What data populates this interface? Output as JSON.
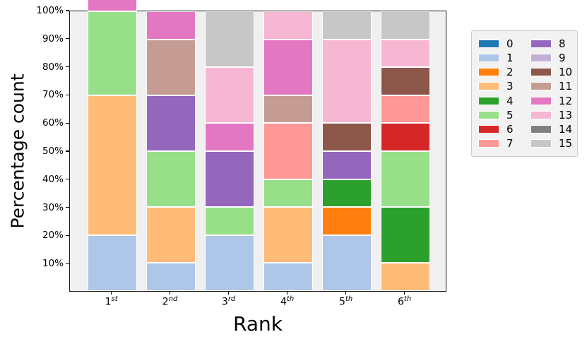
{
  "chart_data": {
    "type": "bar",
    "stacked": true,
    "orientation": "vertical",
    "title": "",
    "xlabel": "Rank",
    "ylabel": "Percentage count",
    "ylim": [
      0,
      100
    ],
    "grid": false,
    "legend_position": "right-outside",
    "categories": [
      {
        "base": "1",
        "sup": "st"
      },
      {
        "base": "2",
        "sup": "nd"
      },
      {
        "base": "3",
        "sup": "rd"
      },
      {
        "base": "4",
        "sup": "th"
      },
      {
        "base": "5",
        "sup": "th"
      },
      {
        "base": "6",
        "sup": "th"
      }
    ],
    "y_ticks": [
      {
        "label": "10%",
        "value": 10
      },
      {
        "label": "20%",
        "value": 20
      },
      {
        "label": "30%",
        "value": 30
      },
      {
        "label": "40%",
        "value": 40
      },
      {
        "label": "50%",
        "value": 50
      },
      {
        "label": "60%",
        "value": 60
      },
      {
        "label": "70%",
        "value": 70
      },
      {
        "label": "80%",
        "value": 80
      },
      {
        "label": "90%",
        "value": 90
      },
      {
        "label": "100%",
        "value": 100
      }
    ],
    "series": [
      {
        "name": "0",
        "color": "#1f77b4",
        "values": [
          0,
          0,
          0,
          0,
          0,
          0
        ]
      },
      {
        "name": "1",
        "color": "#aec7e8",
        "values": [
          20,
          10,
          20,
          10,
          20,
          0
        ]
      },
      {
        "name": "2",
        "color": "#ff7f0e",
        "values": [
          0,
          0,
          0,
          0,
          10,
          0
        ]
      },
      {
        "name": "3",
        "color": "#ffbb78",
        "values": [
          50,
          20,
          0,
          20,
          0,
          10
        ]
      },
      {
        "name": "4",
        "color": "#2ca02c",
        "values": [
          0,
          0,
          0,
          0,
          10,
          20
        ]
      },
      {
        "name": "5",
        "color": "#98df8a",
        "values": [
          30,
          20,
          10,
          10,
          0,
          20
        ]
      },
      {
        "name": "6",
        "color": "#d62728",
        "values": [
          0,
          0,
          0,
          0,
          0,
          10
        ]
      },
      {
        "name": "7",
        "color": "#ff9896",
        "values": [
          0,
          0,
          0,
          20,
          0,
          10
        ]
      },
      {
        "name": "8",
        "color": "#9467bd",
        "values": [
          0,
          20,
          20,
          0,
          10,
          0
        ]
      },
      {
        "name": "9",
        "color": "#c5b0d5",
        "values": [
          0,
          0,
          0,
          0,
          0,
          0
        ]
      },
      {
        "name": "10",
        "color": "#8c564b",
        "values": [
          0,
          0,
          0,
          0,
          10,
          10
        ]
      },
      {
        "name": "11",
        "color": "#c49c94",
        "values": [
          0,
          20,
          0,
          10,
          0,
          0
        ]
      },
      {
        "name": "12",
        "color": "#e377c2",
        "values": [
          10,
          10,
          10,
          20,
          0,
          0
        ]
      },
      {
        "name": "13",
        "color": "#f7b6d2",
        "values": [
          0,
          0,
          20,
          10,
          30,
          10
        ]
      },
      {
        "name": "14",
        "color": "#7f7f7f",
        "values": [
          0,
          0,
          0,
          0,
          0,
          0
        ]
      },
      {
        "name": "15",
        "color": "#c7c7c7",
        "values": [
          0,
          0,
          20,
          0,
          10,
          10
        ]
      }
    ],
    "colors": {
      "figure_bg": "#ffffff",
      "plot_bg": "#f0f0f0",
      "spine": "#1a1a1a",
      "segment_edge": "#ffffff",
      "legend_bg": "#f2f2f2",
      "legend_border": "#cccccc",
      "text": "#000000"
    }
  }
}
